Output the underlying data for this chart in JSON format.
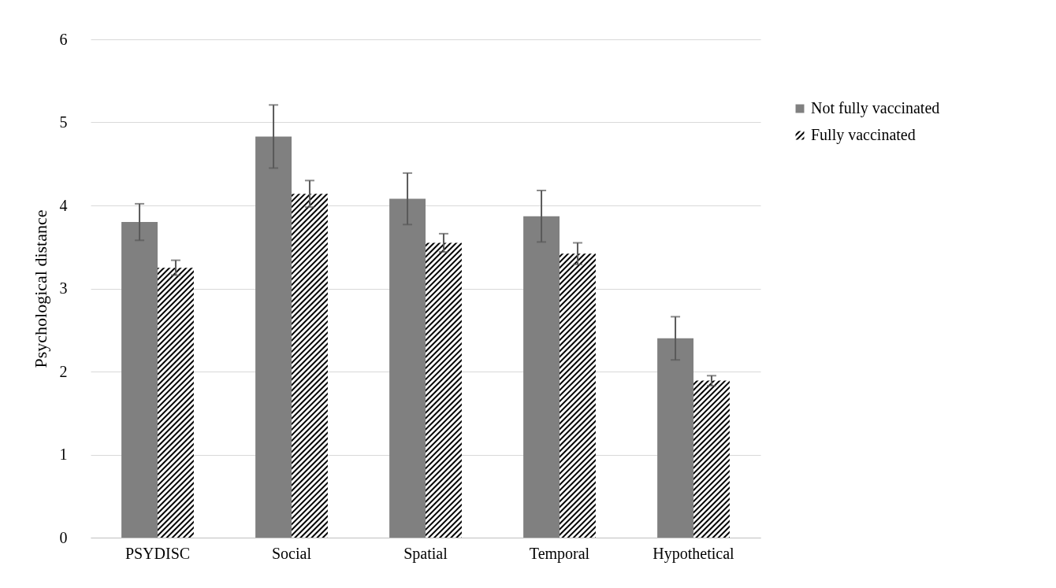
{
  "chart_data": {
    "type": "bar",
    "ylabel": "Psychological distance",
    "categories": [
      "PSYDISC",
      "Social",
      "Spatial",
      "Temporal",
      "Hypothetical"
    ],
    "series": [
      {
        "name": "Not fully vaccinated",
        "color": "#808080",
        "values": [
          3.8,
          4.83,
          4.08,
          3.87,
          2.4
        ],
        "errors": [
          0.22,
          0.38,
          0.31,
          0.31,
          0.26
        ]
      },
      {
        "name": "Fully vaccinated",
        "color": "#000000",
        "values": [
          3.25,
          4.14,
          3.55,
          3.42,
          1.89
        ],
        "errors": [
          0.09,
          0.16,
          0.11,
          0.13,
          0.06
        ]
      }
    ],
    "ylim": [
      0,
      6
    ],
    "yticks": [
      0,
      1,
      2,
      3,
      4,
      5,
      6
    ],
    "grid": "y",
    "legend": "right"
  }
}
